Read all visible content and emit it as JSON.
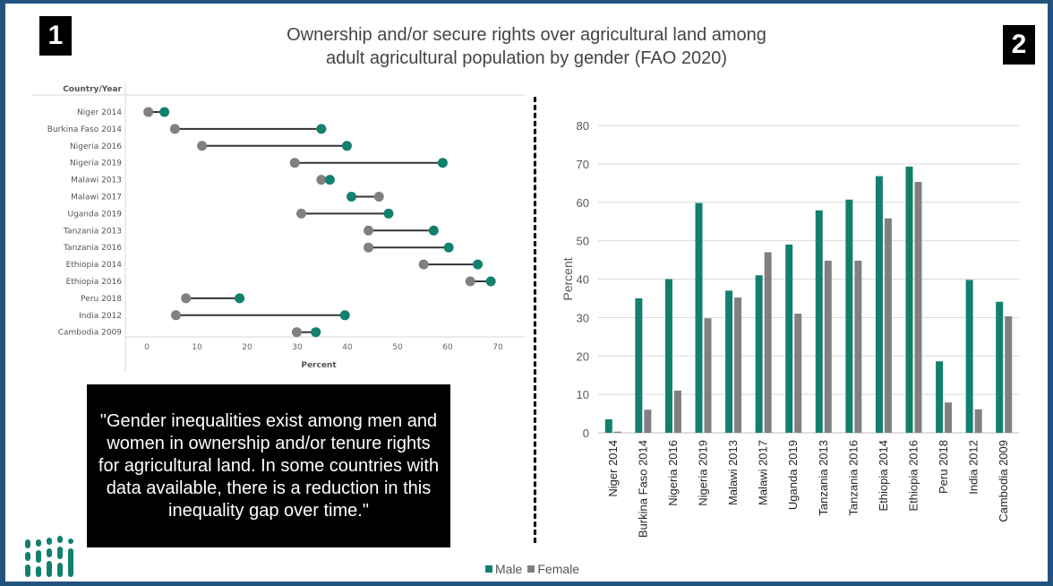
{
  "slide": {
    "badge_left": "1",
    "badge_right": "2",
    "title_line1": "Ownership and/or secure rights over agricultural land among",
    "title_line2": "adult agricultural population by gender (FAO 2020)",
    "quote": "\"Gender inequalities exist among men and women in ownership and/or tenure rights for agricultural land. In some countries with data available, there is a reduction in this inequality gap over time.\""
  },
  "colors": {
    "male": "#13806e",
    "female": "#808080",
    "background": "#22537f",
    "connector": "#333333"
  },
  "chart_data": [
    {
      "type": "dumbbell",
      "row_header": "Country/Year",
      "xlabel": "Percent",
      "xlim": [
        0,
        70
      ],
      "xticks": [
        0,
        10,
        20,
        30,
        40,
        50,
        60,
        70
      ],
      "categories": [
        "Niger 2014",
        "Burkina Faso 2014",
        "Nigeria 2016",
        "Nigeria 2019",
        "Malawi 2013",
        "Malawi 2017",
        "Uganda 2019",
        "Tanzania 2013",
        "Tanzania 2016",
        "Ethiopia 2014",
        "Ethiopia 2016",
        "Peru 2018",
        "India 2012",
        "Cambodia 2009"
      ],
      "series": [
        {
          "name": "Male",
          "values": [
            3.5,
            34.8,
            39.9,
            59.0,
            36.5,
            40.8,
            48.2,
            57.2,
            60.2,
            66.0,
            68.6,
            18.5,
            39.5,
            33.7
          ]
        },
        {
          "name": "Female",
          "values": [
            0.3,
            5.6,
            11.0,
            29.5,
            34.8,
            46.3,
            30.8,
            44.2,
            44.2,
            55.2,
            64.5,
            7.8,
            5.8,
            29.9
          ]
        }
      ]
    },
    {
      "type": "bar",
      "ylabel": "Percent",
      "ylim": [
        0,
        80
      ],
      "yticks": [
        0,
        10,
        20,
        30,
        40,
        50,
        60,
        70,
        80
      ],
      "grid": true,
      "legend": "bottom",
      "categories": [
        "Niger 2014",
        "Burkina Faso 2014",
        "Nigeria 2016",
        "Nigeria 2019",
        "Malawi 2013",
        "Malawi 2017",
        "Uganda 2019",
        "Tanzania 2013",
        "Tanzania 2016",
        "Ethiopia 2014",
        "Ethiopia 2016",
        "Peru 2018",
        "India 2012",
        "Cambodia 2009"
      ],
      "series": [
        {
          "name": "Male",
          "values": [
            3.5,
            35.0,
            40.0,
            59.8,
            37.0,
            41.0,
            49.0,
            57.9,
            60.7,
            66.8,
            69.3,
            18.6,
            39.8,
            34.1
          ]
        },
        {
          "name": "Female",
          "values": [
            0.3,
            6.0,
            11.0,
            29.8,
            35.2,
            47.0,
            31.0,
            44.8,
            44.8,
            55.8,
            65.3,
            7.9,
            6.1,
            30.3
          ]
        }
      ]
    }
  ]
}
